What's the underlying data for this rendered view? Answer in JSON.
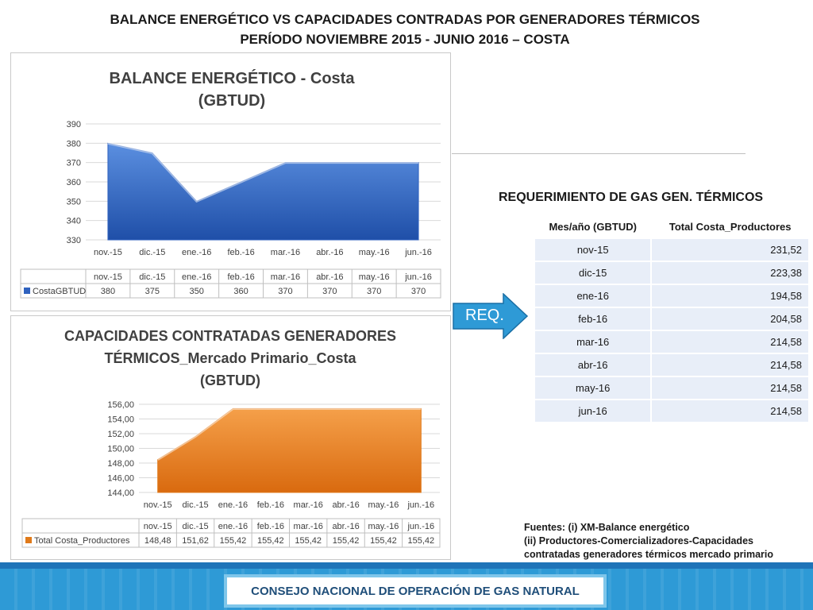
{
  "header": {
    "title_line1": "BALANCE ENERGÉTICO VS CAPACIDADES CONTRADAS POR GENERADORES TÉRMICOS",
    "title_line2": "PERÍODO NOVIEMBRE 2015 - JUNIO 2016 – COSTA"
  },
  "chart_data": [
    {
      "type": "area",
      "title_line1": "BALANCE ENERGÉTICO - Costa",
      "title_line2": "(GBTUD)",
      "categories": [
        "nov.-15",
        "dic.-15",
        "ene.-16",
        "feb.-16",
        "mar.-16",
        "abr.-16",
        "may.-16",
        "jun.-16"
      ],
      "series": [
        {
          "name": "CostaGBTUD",
          "values": [
            380,
            375,
            350,
            360,
            370,
            370,
            370,
            370
          ]
        }
      ],
      "value_labels": [
        "380",
        "375",
        "350",
        "360",
        "370",
        "370",
        "370",
        "370"
      ],
      "yticks": [
        "330",
        "340",
        "350",
        "360",
        "370",
        "380",
        "390"
      ],
      "ylim": [
        330,
        390
      ],
      "grid": true,
      "legend": "data-table-below",
      "color": "#3a6ecc"
    },
    {
      "type": "area",
      "title_line1": "CAPACIDADES CONTRATADAS GENERADORES",
      "title_line2": "TÉRMICOS_Mercado Primario_Costa",
      "title_line3": "(GBTUD)",
      "categories": [
        "nov.-15",
        "dic.-15",
        "ene.-16",
        "feb.-16",
        "mar.-16",
        "abr.-16",
        "may.-16",
        "jun.-16"
      ],
      "series": [
        {
          "name": "Total Costa_Productores",
          "values": [
            148.48,
            151.62,
            155.42,
            155.42,
            155.42,
            155.42,
            155.42,
            155.42
          ]
        }
      ],
      "value_labels": [
        "148,48",
        "151,62",
        "155,42",
        "155,42",
        "155,42",
        "155,42",
        "155,42",
        "155,42"
      ],
      "yticks": [
        "144,00",
        "146,00",
        "148,00",
        "150,00",
        "152,00",
        "154,00",
        "156,00"
      ],
      "ylim": [
        144,
        156
      ],
      "grid": true,
      "legend": "data-table-below",
      "color": "#e8821c"
    }
  ],
  "requirement": {
    "title": "REQUERIMIENTO DE GAS GEN. TÉRMICOS",
    "headers": [
      "Mes/año (GBTUD)",
      "Total Costa_Productores"
    ],
    "rows": [
      [
        "nov-15",
        "231,52"
      ],
      [
        "dic-15",
        "223,38"
      ],
      [
        "ene-16",
        "194,58"
      ],
      [
        "feb-16",
        "204,58"
      ],
      [
        "mar-16",
        "214,58"
      ],
      [
        "abr-16",
        "214,58"
      ],
      [
        "may-16",
        "214,58"
      ],
      [
        "jun-16",
        "214,58"
      ]
    ]
  },
  "arrow": {
    "label": "REQ.",
    "color": "#2e9ad6"
  },
  "sources": {
    "line1": "Fuentes: (i) XM-Balance energético",
    "line2": "(ii) Productores-Comercializadores-Capacidades",
    "line3": "contratadas generadores térmicos mercado primario"
  },
  "footer": {
    "label": "CONSEJO NACIONAL DE OPERACIÓN DE GAS NATURAL"
  }
}
